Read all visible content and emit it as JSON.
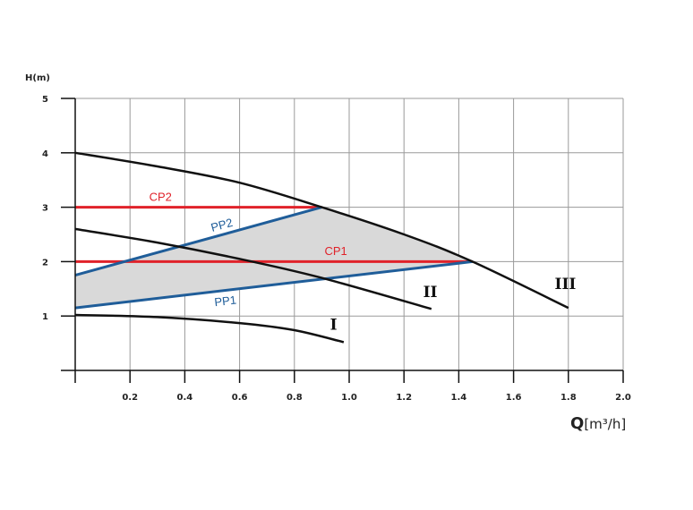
{
  "chart_data": {
    "type": "line",
    "ylabel": "H(m)",
    "xlabel_main": "Q",
    "xlabel_unit": "[m³/h]",
    "xlim": [
      0,
      2.0
    ],
    "ylim": [
      0,
      5
    ],
    "grid": true,
    "x_ticks": [
      "0.2",
      "0.4",
      "0.6",
      "0.8",
      "1.0",
      "1.2",
      "1.4",
      "1.6",
      "1.8",
      "2.0"
    ],
    "y_ticks": [
      "1",
      "2",
      "3",
      "4",
      "5"
    ],
    "pump_curves": [
      {
        "name": "I",
        "x": [
          0,
          0.3,
          0.6,
          0.8,
          0.98
        ],
        "y": [
          1.02,
          0.98,
          0.87,
          0.74,
          0.52
        ],
        "color": "#111111",
        "label_x": 0.93,
        "label_y": 0.75
      },
      {
        "name": "II",
        "x": [
          0,
          0.3,
          0.6,
          0.9,
          1.3
        ],
        "y": [
          2.6,
          2.35,
          2.05,
          1.7,
          1.13
        ],
        "color": "#111111",
        "label_x": 1.27,
        "label_y": 1.35
      },
      {
        "name": "III",
        "x": [
          0,
          0.3,
          0.6,
          0.9,
          1.2,
          1.45,
          1.8
        ],
        "y": [
          4.0,
          3.75,
          3.45,
          3.0,
          2.5,
          2.0,
          1.15
        ],
        "color": "#111111",
        "label_x": 1.75,
        "label_y": 1.5
      }
    ],
    "control_lines": [
      {
        "name": "CP2",
        "x": [
          0,
          0.9
        ],
        "y": [
          3.0,
          3.0
        ],
        "color": "#e0222a",
        "label_x": 0.27,
        "label_y": 3.12
      },
      {
        "name": "CP1",
        "x": [
          0,
          1.45
        ],
        "y": [
          2.0,
          2.0
        ],
        "color": "#e0222a",
        "label_x": 0.91,
        "label_y": 2.12
      },
      {
        "name": "PP2",
        "x": [
          0,
          0.9
        ],
        "y": [
          1.75,
          3.0
        ],
        "color": "#1f5d99",
        "label_x": 0.5,
        "label_y": 2.55
      },
      {
        "name": "PP1",
        "x": [
          0,
          1.45
        ],
        "y": [
          1.15,
          2.0
        ],
        "color": "#1f5d99",
        "label_x": 0.51,
        "label_y": 1.18
      }
    ],
    "shaded_region": {
      "color": "#d9d9d9",
      "x": [
        0,
        0.9,
        1.2,
        1.45,
        0
      ],
      "y": [
        1.75,
        3.0,
        2.5,
        2.0,
        1.15
      ]
    }
  }
}
